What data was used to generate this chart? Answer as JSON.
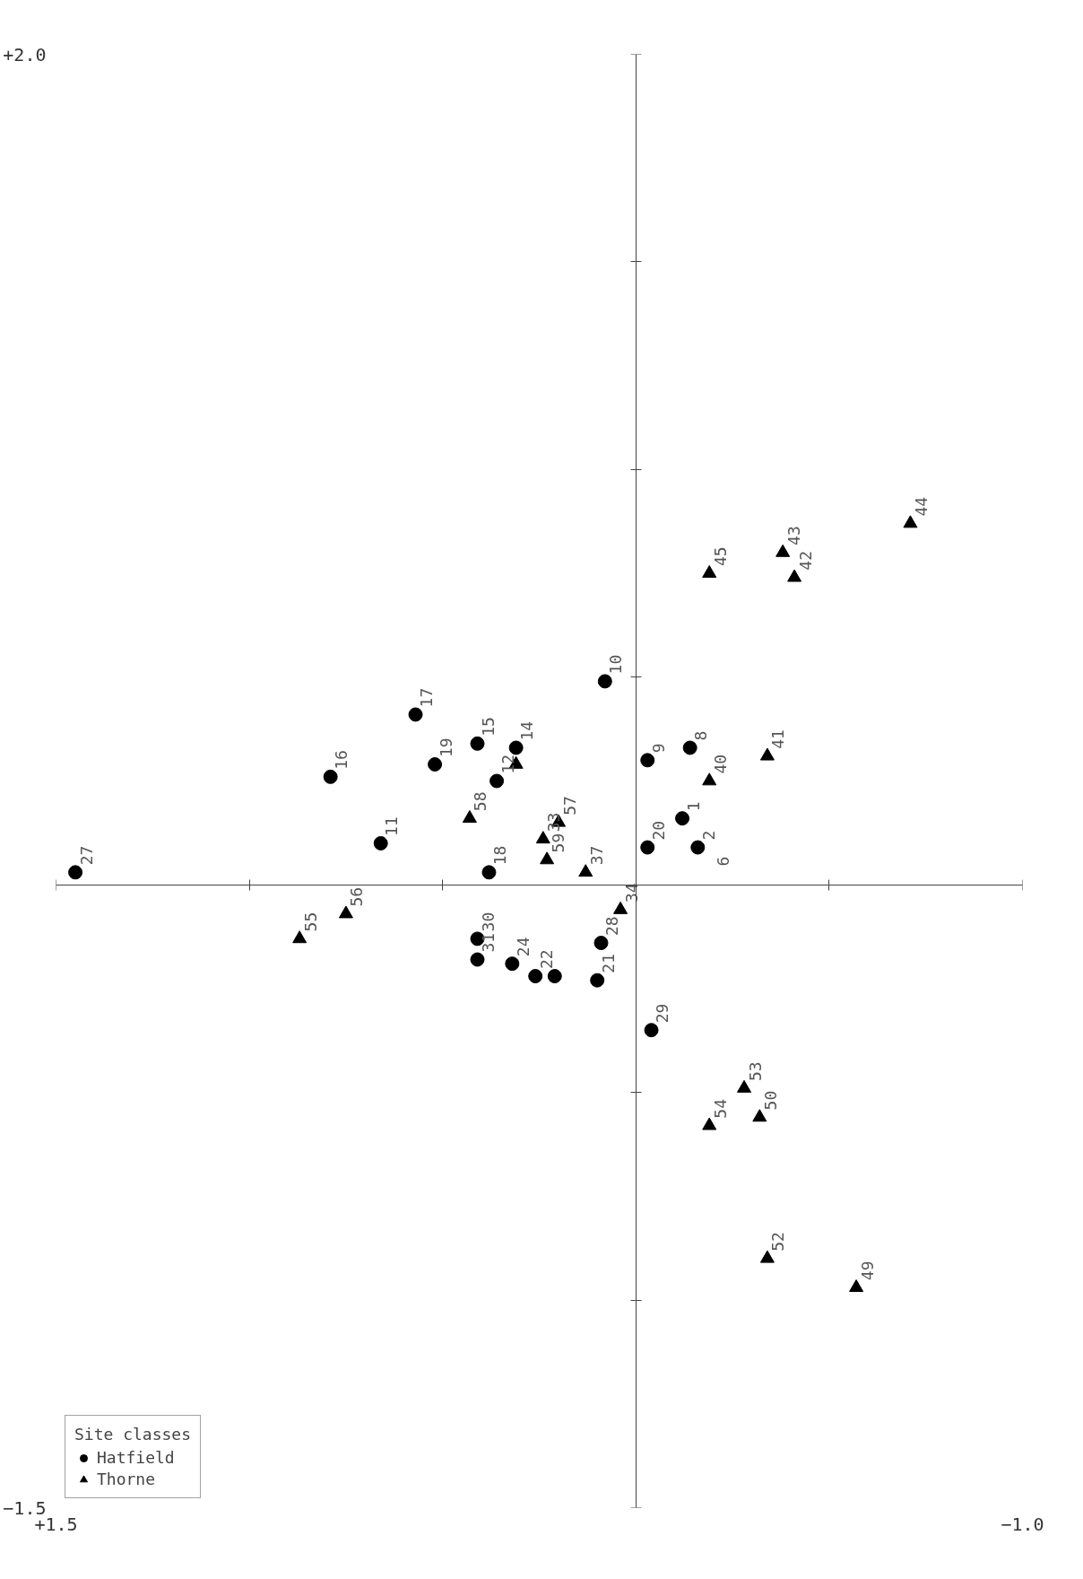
{
  "chart_data": {
    "type": "scatter",
    "legend_title": "Site classes",
    "legend": "bottom left",
    "grid": false,
    "xlim": [
      1.5,
      -1.0
    ],
    "ylim": [
      -1.5,
      2.0
    ],
    "xticks": [
      {
        "value": 1.5,
        "label": "+1.5"
      },
      {
        "value": 1.0,
        "label": null
      },
      {
        "value": 0.5,
        "label": null
      },
      {
        "value": -0.5,
        "label": null
      },
      {
        "value": -1.0,
        "label": "−1.0"
      }
    ],
    "yticks": [
      {
        "value": -1.5,
        "label": "−1.5"
      },
      {
        "value": -1.0,
        "label": null
      },
      {
        "value": -0.5,
        "label": null
      },
      {
        "value": 0.5,
        "label": null
      },
      {
        "value": 1.0,
        "label": null
      },
      {
        "value": 1.5,
        "label": null
      },
      {
        "value": 2.0,
        "label": "+2.0"
      }
    ],
    "series": [
      {
        "name": "Hatfield",
        "color": "#000000",
        "marker": "circle",
        "x": [
          1.45,
          0.79,
          0.66,
          0.57,
          0.52,
          0.41,
          0.31,
          0.36,
          0.38,
          0.08,
          -0.03,
          -0.14,
          -0.12,
          -0.16,
          -0.03,
          0.41,
          0.41,
          0.32,
          0.26,
          0.21,
          0.1,
          0.09,
          -0.04
        ],
        "values": [
          0.03,
          0.26,
          0.1,
          0.41,
          0.29,
          0.34,
          0.33,
          0.25,
          0.03,
          0.49,
          0.3,
          0.33,
          0.16,
          0.09,
          0.09,
          -0.13,
          -0.18,
          -0.19,
          -0.22,
          -0.22,
          -0.23,
          -0.14,
          -0.35
        ]
      },
      {
        "name": "Thorne",
        "color": "#000000",
        "marker": "triangle",
        "x": [
          -0.71,
          -0.38,
          -0.41,
          -0.19,
          -0.34,
          -0.19,
          0.43,
          0.31,
          0.2,
          0.24,
          0.23,
          0.13,
          0.04,
          0.87,
          0.75,
          -0.28,
          -0.32,
          -0.19,
          -0.34,
          -0.57
        ],
        "values": [
          0.87,
          0.8,
          0.74,
          0.75,
          0.31,
          0.25,
          0.16,
          0.29,
          0.15,
          0.11,
          0.06,
          0.03,
          -0.06,
          -0.13,
          -0.07,
          -0.49,
          -0.56,
          -0.58,
          -0.9,
          -0.97
        ]
      }
    ],
    "annotations": [
      {
        "text": "27",
        "x": 1.45,
        "y": 0.03
      },
      {
        "text": "16",
        "x": 0.79,
        "y": 0.26
      },
      {
        "text": "11",
        "x": 0.66,
        "y": 0.1
      },
      {
        "text": "17",
        "x": 0.57,
        "y": 0.41
      },
      {
        "text": "19",
        "x": 0.52,
        "y": 0.29
      },
      {
        "text": "15",
        "x": 0.41,
        "y": 0.34
      },
      {
        "text": "14",
        "x": 0.31,
        "y": 0.33
      },
      {
        "text": "12",
        "x": 0.36,
        "y": 0.25
      },
      {
        "text": "18",
        "x": 0.38,
        "y": 0.03
      },
      {
        "text": "10",
        "x": 0.08,
        "y": 0.49
      },
      {
        "text": "9",
        "x": -0.03,
        "y": 0.3
      },
      {
        "text": "8",
        "x": -0.14,
        "y": 0.33
      },
      {
        "text": "1",
        "x": -0.12,
        "y": 0.16
      },
      {
        "text": "2",
        "x": -0.16,
        "y": 0.09
      },
      {
        "text": "6",
        "x": -0.16,
        "y": 0.09
      },
      {
        "text": "20",
        "x": -0.03,
        "y": 0.09
      },
      {
        "text": "30",
        "x": 0.41,
        "y": -0.13
      },
      {
        "text": "31",
        "x": 0.41,
        "y": -0.18
      },
      {
        "text": "24",
        "x": 0.32,
        "y": -0.19
      },
      {
        "text": "22",
        "x": 0.26,
        "y": -0.22
      },
      {
        "text": "21",
        "x": 0.1,
        "y": -0.23
      },
      {
        "text": "28",
        "x": 0.09,
        "y": -0.14
      },
      {
        "text": "29",
        "x": -0.04,
        "y": -0.35
      },
      {
        "text": "44",
        "x": -0.71,
        "y": 0.87
      },
      {
        "text": "43",
        "x": -0.38,
        "y": 0.8
      },
      {
        "text": "42",
        "x": -0.41,
        "y": 0.74
      },
      {
        "text": "45",
        "x": -0.19,
        "y": 0.75
      },
      {
        "text": "41",
        "x": -0.34,
        "y": 0.31
      },
      {
        "text": "40",
        "x": -0.19,
        "y": 0.25
      },
      {
        "text": "58",
        "x": 0.43,
        "y": 0.16
      },
      {
        "text": "57",
        "x": 0.2,
        "y": 0.15
      },
      {
        "text": "33",
        "x": 0.24,
        "y": 0.11
      },
      {
        "text": "59",
        "x": 0.23,
        "y": 0.06
      },
      {
        "text": "37",
        "x": 0.13,
        "y": 0.03
      },
      {
        "text": "34",
        "x": 0.04,
        "y": -0.06
      },
      {
        "text": "55",
        "x": 0.87,
        "y": -0.13
      },
      {
        "text": "56",
        "x": 0.75,
        "y": -0.07
      },
      {
        "text": "53",
        "x": -0.28,
        "y": -0.49
      },
      {
        "text": "50",
        "x": -0.32,
        "y": -0.56
      },
      {
        "text": "54",
        "x": -0.19,
        "y": -0.58
      },
      {
        "text": "52",
        "x": -0.34,
        "y": -0.9
      },
      {
        "text": "49",
        "x": -0.57,
        "y": -0.97
      }
    ]
  }
}
